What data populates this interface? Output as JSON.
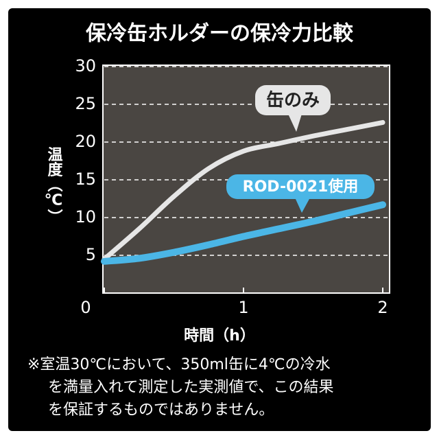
{
  "chart_data": {
    "type": "line",
    "title": "保冷缶ホルダーの保冷力比較",
    "y_label": "温度（℃）",
    "x_label": "時間（h）",
    "x": [
      0,
      0.25,
      0.5,
      0.75,
      1,
      1.25,
      1.5,
      1.75,
      2
    ],
    "series": [
      {
        "name": "缶のみ",
        "color": "#e6e6e6",
        "values": [
          4.5,
          8.5,
          12.8,
          16.5,
          18.8,
          19.8,
          20.8,
          21.7,
          22.6
        ]
      },
      {
        "name": "ROD-0021使用",
        "color": "#4bb6e6",
        "values": [
          4.2,
          4.6,
          5.4,
          6.4,
          7.5,
          8.5,
          9.5,
          10.6,
          11.7
        ]
      }
    ],
    "xlim": [
      0,
      2
    ],
    "xticks": [
      0,
      1,
      2
    ],
    "ylim": [
      0,
      30
    ],
    "yticks": [
      5,
      10,
      15,
      20,
      25,
      30
    ],
    "grid": true,
    "note": [
      "※室温30℃において、350ml缶に4℃の冷水",
      "を満量入れて測定した実測値で、この結果",
      "を保証するものではありません。"
    ]
  }
}
